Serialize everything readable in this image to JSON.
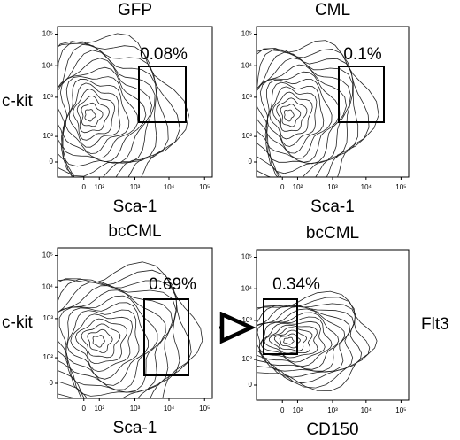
{
  "panels": [
    {
      "title": "GFP",
      "y_label": "c-kit",
      "x_label": "Sca-1",
      "gate_label": "0.08%",
      "x_ticks": [
        "0",
        "10²",
        "10³",
        "10⁴",
        "10⁵"
      ],
      "y_ticks": [
        "0",
        "10²",
        "10³",
        "10⁴",
        "10⁵"
      ]
    },
    {
      "title": "CML",
      "x_label": "Sca-1",
      "gate_label": "0.1%",
      "x_ticks": [
        "0",
        "10²",
        "10³",
        "10⁴",
        "10⁵"
      ],
      "y_ticks": [
        "0",
        "10²",
        "10³",
        "10⁴",
        "10⁵"
      ]
    },
    {
      "title": "bcCML",
      "y_label": "c-kit",
      "x_label": "Sca-1",
      "gate_label": "0.69%",
      "x_ticks": [
        "0",
        "10²",
        "10³",
        "10⁴",
        "10⁵"
      ],
      "y_ticks": [
        "0",
        "10²",
        "10³",
        "10⁴",
        "10⁵"
      ]
    },
    {
      "title": "bcCML",
      "right_label": "Flt3",
      "x_label": "CD150",
      "gate_label": "0.34%",
      "x_ticks": [
        "0",
        "10²",
        "10³",
        "10⁴",
        "10⁵"
      ],
      "y_ticks": [
        "0",
        "10²",
        "10³",
        "10⁴",
        "10⁵"
      ]
    }
  ]
}
